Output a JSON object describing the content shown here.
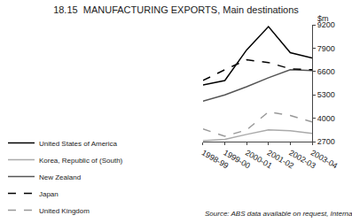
{
  "chart_data": {
    "type": "line",
    "title": "18.15  MANUFACTURING EXPORTS, Main destinations",
    "ylabel": "$m",
    "source": "Source: ABS data available on request, International Trade.",
    "categories": [
      "1998-99",
      "1999-00",
      "2000-01",
      "2001-02",
      "2002-03",
      "2003-04"
    ],
    "series": [
      {
        "name": "United States of America",
        "values": [
          5850,
          6100,
          7800,
          9100,
          7650,
          7350
        ],
        "color": "#000000",
        "line_style": "solid"
      },
      {
        "name": "Korea, Republic of (South)",
        "values": [
          2750,
          2820,
          3100,
          3350,
          3300,
          3150
        ],
        "color": "#aaaaaa",
        "line_style": "solid"
      },
      {
        "name": "New Zealand",
        "values": [
          4950,
          5300,
          5750,
          6250,
          6700,
          6650
        ],
        "color": "#555555",
        "line_style": "solid"
      },
      {
        "name": "Japan",
        "values": [
          6100,
          6700,
          7250,
          7100,
          6750,
          6700
        ],
        "color": "#000000",
        "line_style": "dashed"
      },
      {
        "name": "United Kingdom",
        "values": [
          3400,
          3000,
          3350,
          4350,
          4150,
          3800
        ],
        "color": "#999999",
        "line_style": "dashed"
      }
    ],
    "ylim": [
      2700,
      9200
    ],
    "yticks": [
      2700,
      4000,
      5300,
      6600,
      7900,
      9200
    ],
    "grid": false,
    "legend": "bottom"
  }
}
